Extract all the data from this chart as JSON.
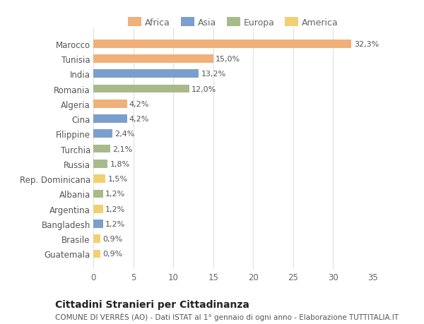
{
  "countries": [
    "Marocco",
    "Tunisia",
    "India",
    "Romania",
    "Algeria",
    "Cina",
    "Filippine",
    "Turchia",
    "Russia",
    "Rep. Dominicana",
    "Albania",
    "Argentina",
    "Bangladesh",
    "Brasile",
    "Guatemala"
  ],
  "values": [
    32.3,
    15.0,
    13.2,
    12.0,
    4.2,
    4.2,
    2.4,
    2.1,
    1.8,
    1.5,
    1.2,
    1.2,
    1.2,
    0.9,
    0.9
  ],
  "labels": [
    "32,3%",
    "15,0%",
    "13,2%",
    "12,0%",
    "4,2%",
    "4,2%",
    "2,4%",
    "2,1%",
    "1,8%",
    "1,5%",
    "1,2%",
    "1,2%",
    "1,2%",
    "0,9%",
    "0,9%"
  ],
  "colors": [
    "#F0B07A",
    "#F0B07A",
    "#7B9FCC",
    "#A8BA8A",
    "#F0B07A",
    "#7B9FCC",
    "#7B9FCC",
    "#A8BA8A",
    "#A8BA8A",
    "#F2D072",
    "#A8BA8A",
    "#F2D072",
    "#7B9FCC",
    "#F2D072",
    "#F2D072"
  ],
  "legend_labels": [
    "Africa",
    "Asia",
    "Europa",
    "America"
  ],
  "legend_colors": [
    "#F0B07A",
    "#7B9FCC",
    "#A8BA8A",
    "#F2D072"
  ],
  "title": "Cittadini Stranieri per Cittadinanza",
  "subtitle": "COMUNE DI VERRÈS (AO) - Dati ISTAT al 1° gennaio di ogni anno - Elaborazione TUTTITALIA.IT",
  "xlim": [
    0,
    35
  ],
  "xticks": [
    0,
    5,
    10,
    15,
    20,
    25,
    30,
    35
  ],
  "background_color": "#ffffff",
  "grid_color": "#e0e0e0",
  "bar_label_fontsize": 8,
  "ytick_fontsize": 8.5,
  "xtick_fontsize": 8.5,
  "title_fontsize": 10,
  "subtitle_fontsize": 7.5,
  "legend_fontsize": 9
}
